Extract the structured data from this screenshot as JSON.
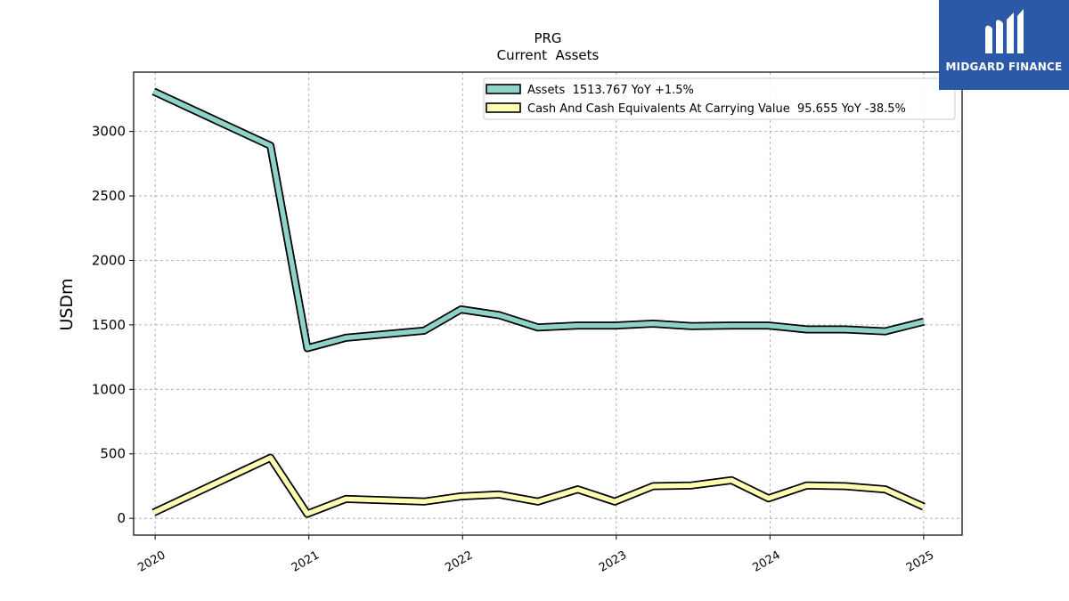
{
  "chart_data": {
    "type": "line",
    "title": "PRG",
    "subtitle": "Current  Assets",
    "ylabel": "USDm",
    "xlabel": "",
    "ylim": [
      -130,
      3460
    ],
    "xlim": [
      2019.86,
      2025.25
    ],
    "grid": true,
    "legend_position": "top-right",
    "x_ticks": [
      {
        "label": "2020",
        "value": 2020.0
      },
      {
        "label": "2021",
        "value": 2021.0
      },
      {
        "label": "2022",
        "value": 2022.0
      },
      {
        "label": "2023",
        "value": 2023.0
      },
      {
        "label": "2024",
        "value": 2024.0
      },
      {
        "label": "2025",
        "value": 2025.0
      }
    ],
    "y_ticks": [
      0,
      500,
      1000,
      1500,
      2000,
      2500,
      3000
    ],
    "x": [
      2019.99,
      2020.75,
      2020.99,
      2021.24,
      2021.75,
      2021.99,
      2022.24,
      2022.49,
      2022.75,
      2022.99,
      2023.24,
      2023.49,
      2023.75,
      2023.99,
      2024.24,
      2024.49,
      2024.75,
      2025.0
    ],
    "series": [
      {
        "name": "Assets  1513.767 YoY +1.5%",
        "color": "#8dd3c7",
        "values": [
          3310,
          2890,
          1320,
          1400,
          1455,
          1620,
          1575,
          1480,
          1495,
          1495,
          1510,
          1490,
          1495,
          1495,
          1465,
          1465,
          1450,
          1525
        ]
      },
      {
        "name": "Cash And Cash Equivalents At Carrying Value  95.655 YoY -38.5%",
        "color": "#ffffb3",
        "values": [
          45,
          470,
          35,
          150,
          130,
          170,
          185,
          130,
          225,
          130,
          250,
          255,
          295,
          155,
          255,
          250,
          225,
          90
        ]
      }
    ]
  },
  "logo": {
    "text": "MIDGARD FINANCE",
    "icon": "midgard-logo-icon",
    "background": "#2b59a8"
  }
}
